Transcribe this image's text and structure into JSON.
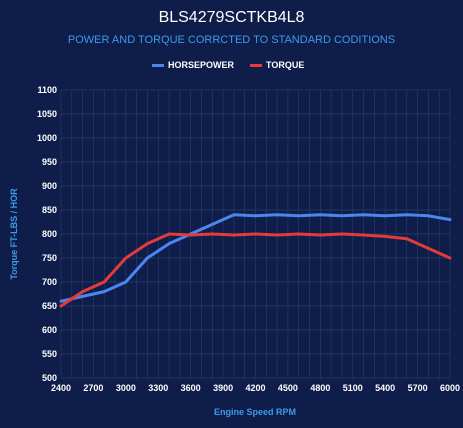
{
  "colors": {
    "background": "#0f1d4a",
    "grid": "#2e3d6a",
    "title": "#ffffff",
    "subtitle": "#3d9be9",
    "horsepower": "#4a86f2",
    "torque": "#e23b3b"
  },
  "chart_data": {
    "type": "line",
    "title": "BLS4279SCTKB4L8",
    "subtitle": "POWER AND TORQUE CORRCTED TO STANDARD CODITIONS",
    "xlabel": "Engine Speed RPM",
    "ylabel": "Torque FT-LBS / HOR",
    "xlim": [
      2400,
      6000
    ],
    "ylim": [
      500,
      1100
    ],
    "x_ticks": [
      "2400",
      "2700",
      "3000",
      "3300",
      "3600",
      "3900",
      "4200",
      "4500",
      "4800",
      "5100",
      "5400",
      "5700",
      "6000"
    ],
    "y_ticks": [
      "500",
      "550",
      "600",
      "650",
      "700",
      "750",
      "800",
      "850",
      "900",
      "950",
      "1000",
      "1050",
      "1100"
    ],
    "grid": true,
    "legend_position": "top-center",
    "x": [
      2400,
      2600,
      2800,
      3000,
      3200,
      3400,
      3600,
      3800,
      4000,
      4200,
      4400,
      4600,
      4800,
      5000,
      5200,
      5400,
      5600,
      5800,
      6000
    ],
    "series": [
      {
        "name": "HORSEPOWER",
        "color": "#4a86f2",
        "values": [
          660,
          670,
          680,
          700,
          750,
          780,
          800,
          820,
          840,
          838,
          840,
          838,
          840,
          838,
          840,
          838,
          840,
          838,
          830
        ]
      },
      {
        "name": "TORQUE",
        "color": "#e23b3b",
        "values": [
          650,
          680,
          700,
          750,
          780,
          800,
          798,
          800,
          798,
          800,
          798,
          800,
          798,
          800,
          798,
          795,
          790,
          770,
          750
        ]
      }
    ]
  }
}
